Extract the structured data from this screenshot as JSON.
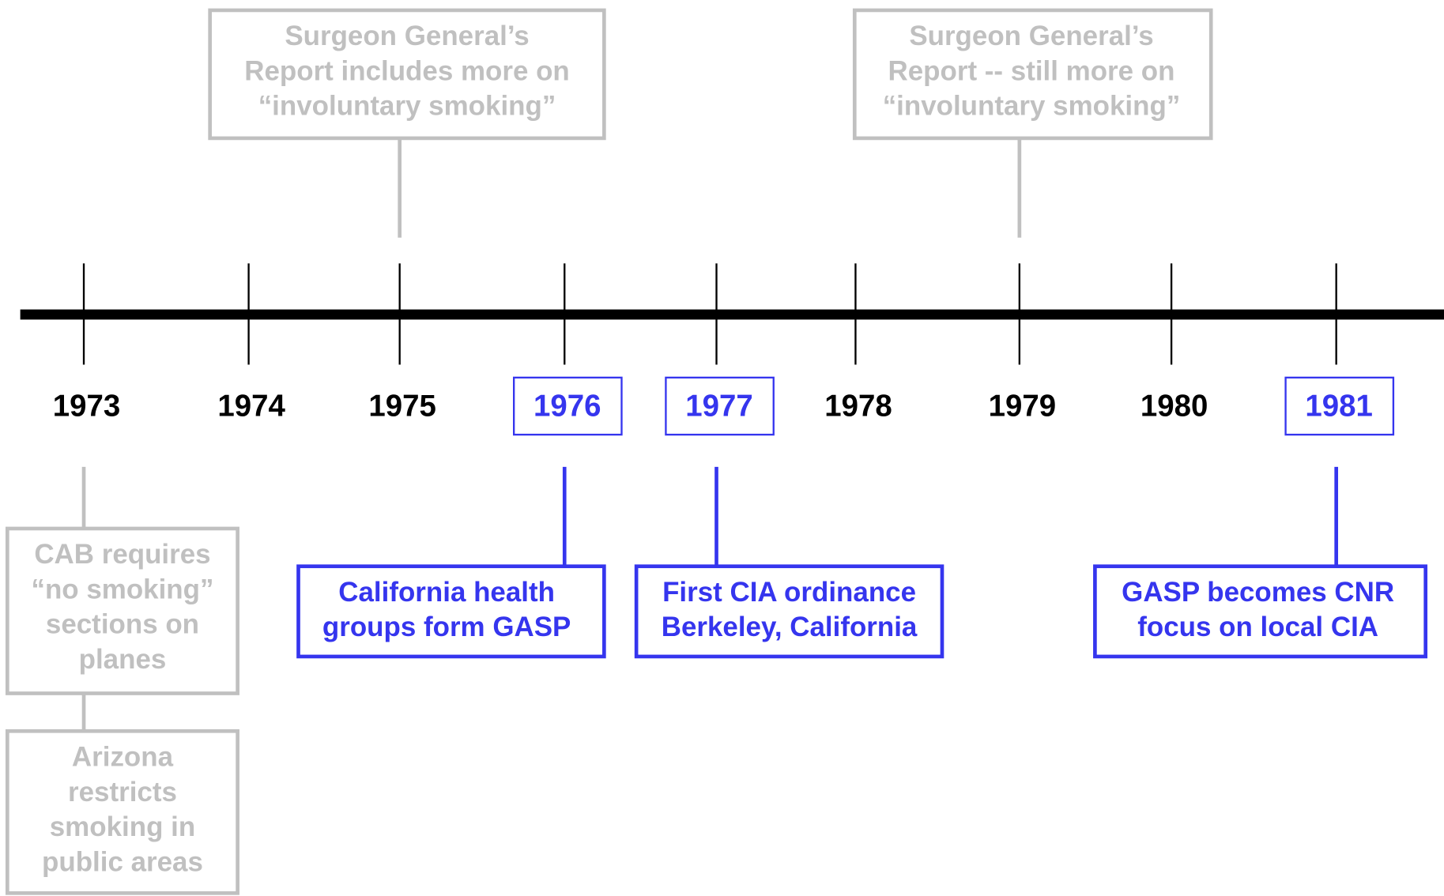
{
  "years": [
    {
      "label": "1973",
      "highlighted": false
    },
    {
      "label": "1974",
      "highlighted": false
    },
    {
      "label": "1975",
      "highlighted": false
    },
    {
      "label": "1976",
      "highlighted": true
    },
    {
      "label": "1977",
      "highlighted": true
    },
    {
      "label": "1978",
      "highlighted": false
    },
    {
      "label": "1979",
      "highlighted": false
    },
    {
      "label": "1980",
      "highlighted": false
    },
    {
      "label": "1981",
      "highlighted": true
    }
  ],
  "events": [
    {
      "lines": [
        "Surgeon General’s",
        "Report includes more on",
        "“involuntary smoking”"
      ],
      "style": "gray"
    },
    {
      "lines": [
        "Surgeon General’s",
        "Report -- still more on",
        "“involuntary smoking”"
      ],
      "style": "gray"
    },
    {
      "lines": [
        "CAB requires",
        "“no smoking”",
        "sections on",
        "planes"
      ],
      "style": "gray"
    },
    {
      "lines": [
        "Arizona",
        "restricts",
        "smoking in",
        "public areas"
      ],
      "style": "gray"
    },
    {
      "lines": [
        "California health",
        "groups form GASP"
      ],
      "style": "blue"
    },
    {
      "lines": [
        "First CIA ordinance",
        "Berkeley, California"
      ],
      "style": "blue"
    },
    {
      "lines": [
        "GASP becomes CNR",
        "focus on local CIA"
      ],
      "style": "blue"
    }
  ]
}
